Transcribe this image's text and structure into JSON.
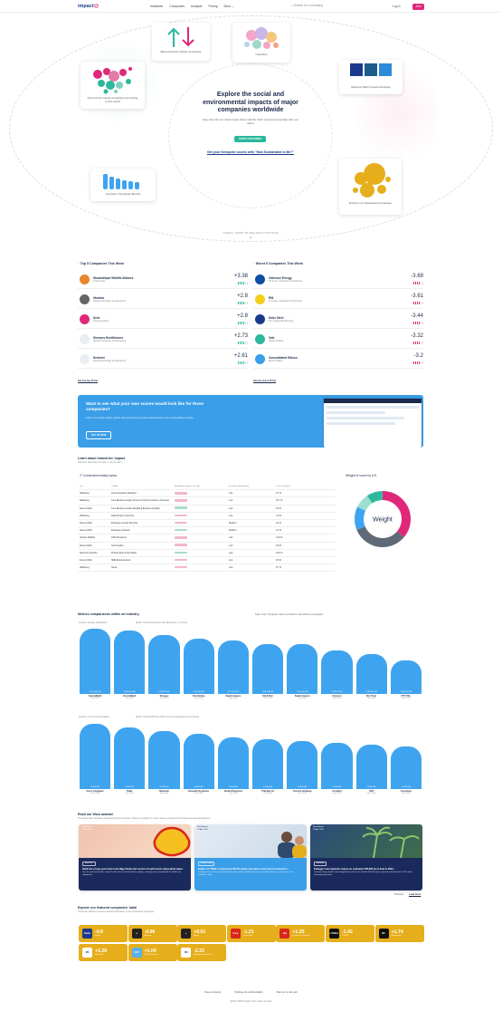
{
  "nav": {
    "logo": "impact",
    "logo_mark": "@",
    "links": [
      "Industries",
      "Companies",
      "Analysts",
      "Pricing",
      "More"
    ],
    "search_placeholder": "Search for a company",
    "login": "Log in",
    "signup": "Join"
  },
  "hero": {
    "title": "Explore the social and environmental impacts of major companies worldwide",
    "subtitle": "Deep dive into our robust impact data to identify which companies lead align with your values",
    "cta": "START EXPLORING",
    "link": "Get your Seespoke scores with \"How Sustainable Is Me?\"",
    "scroll": "SCROLL DOWN TO SEE ANALYTICS DATA",
    "cards": {
      "best_worst": "Best and worst impact companies",
      "industries": "Industries",
      "find_impact": "Find out the impact companies are having on the world",
      "analyses": "Read our Best Impacts Analyses",
      "compare": "Compare Companies Metrics",
      "showcase": "Explore our showcased companies"
    }
  },
  "top": {
    "heading": "Top 5 Companies This Week",
    "see_all": "See the top 20 list",
    "items": [
      {
        "name": "Mozambique Wildlife Alliance",
        "sub": "Conservation",
        "score": "+3.38",
        "color": "#e8862a"
      },
      {
        "name": "Illumina",
        "sub": "Medical Technology and Equipment",
        "score": "+2.8",
        "color": "#666666"
      },
      {
        "name": "Seek",
        "sub": "Internet & Media",
        "score": "+2.8",
        "color": "#e0287b"
      },
      {
        "name": "Siemens Healthineers",
        "sub": "Medical Technology and Equipment",
        "score": "+2.73",
        "color": "#e8edf3"
      },
      {
        "name": "Dentsinl",
        "sub": "Medical Technology and Equipment",
        "score": "+2.61",
        "color": "#e8edf3"
      }
    ]
  },
  "worst": {
    "heading": "Worst 5 Companies This Week",
    "see_all": "See the worst 20 list",
    "items": [
      {
        "name": "Ostrovoe Energy",
        "sub": "Oil & Gas - Exploration & Production",
        "score": "-3.69",
        "color": "#0e4da4"
      },
      {
        "name": "ENI",
        "sub": "Oil & Gas - Exploration & Production",
        "score": "-3.61",
        "color": "#f4cf1a"
      },
      {
        "name": "Kobe Steel",
        "sub": "Iron & Steel Manufacturing",
        "score": "-3.44",
        "color": "#1b3a8c"
      },
      {
        "name": "Vale",
        "sub": "Mining & Metals",
        "score": "-3.32",
        "color": "#2cb89d"
      },
      {
        "name": "Consolidated Edison",
        "sub": "Electric Utilities",
        "score": "-3.2",
        "color": "#3a9ee8"
      }
    ]
  },
  "banner": {
    "title": "Want to see what your own scores would look like for these companies?",
    "text": "Click on the button below, quickly rate each query, and get ranked based on your sustainability priorities",
    "cta": "SET UP NOW"
  },
  "learn": {
    "heading": "Learn about Industries' impact",
    "sub": "Discover what they do well, or not so well...",
    "topics": "Connectvia industry topics",
    "columns": [
      "S.N",
      "THEME",
      "AVERAGE IMPACT SCORE",
      "SCORE DISPERSION",
      "TOPIC WEIGHT"
    ],
    "rows": [
      [
        "Wellbeing",
        "Anti-Competitive Behavior",
        "",
        "Low",
        "0.7 %"
      ],
      [
        "Wellbeing",
        "Core Business Impact (Income Or Entire Goods or Services)",
        "",
        "Low",
        "32.7 %"
      ],
      [
        "Decent Work",
        "Core Business Impact (Enabling Business Growth)",
        "",
        "Low",
        "0.8 %"
      ],
      [
        "Wellbeing",
        "Data Privacy & Security",
        "",
        "Low",
        "1.8 %"
      ],
      [
        "Decent Work",
        "Employee Gender Diversity",
        "",
        "Medium",
        "0.2 %"
      ],
      [
        "Decent Work",
        "Employee Inclusion",
        "",
        "Medium",
        "2.1 %"
      ],
      [
        "Climate Stability",
        "GHG Emissions",
        "",
        "Low",
        "13.9 %"
      ],
      [
        "Decent Work",
        "Job Creation",
        "",
        "Low",
        "0.9 %"
      ],
      [
        "Resource Security",
        "Product End-of-Life Waste",
        "",
        "Low",
        "13.8 %"
      ],
      [
        "Decent Work",
        "SME Empowerment",
        "",
        "Low",
        "9.8 %"
      ],
      [
        "Wellbeing",
        "Taxes",
        "",
        "Low",
        "8.7 %"
      ]
    ],
    "donut_title": "Weight of score by ILG",
    "donut_center": "Weight"
  },
  "metrics": {
    "heading": "Metrics comparisons within an industry",
    "note": "Note: Only \"Complete\" data is included in the Metrics Comparator",
    "chart1_labels": [
      "Industry: Energy & Materials",
      "Metric: Total Greenhouse Gas Emissions, in Tonnes"
    ],
    "chart2_labels": [
      "Industry: IT & Communications",
      "Metric: Total Staff Hours With Access to Education and Training"
    ]
  },
  "chart_data": [
    {
      "type": "bar",
      "title": "",
      "categories": [
        "ExxonMobil",
        "ExxonMobil",
        "Sinopec",
        "PetroChina",
        "Saudi Aramco",
        "Shell PLC",
        "Saudi Aramco",
        "Chevron",
        "Rio Tinto",
        "PTT PCL"
      ],
      "years": [
        "Year 2022",
        "Year 2021",
        "Year 2022",
        "Year 2022",
        "Year 2022",
        "Year 2022",
        "Year 2021",
        "Year 2022",
        "Year 2022",
        "Year 2022"
      ],
      "values": [
        2100000000,
        2040000000,
        1910000000,
        1790000000,
        1710000000,
        1600000000,
        1590000000,
        1390000000,
        1280000000,
        1090000000
      ],
      "value_labels": [
        "2,100,000,000",
        "2,040,000,000",
        "1,910,000,000",
        "1,790,000,000",
        "1,710,000,000",
        "1,600,000,000",
        "1,590,000,000",
        "1,390,000,000",
        "1,280,000,000",
        "1,090,000,000"
      ]
    },
    {
      "type": "bar",
      "title": "",
      "categories": [
        "Cisco Computer",
        "Tata1",
        "Nintendo",
        "Dassault Systemes",
        "Global Payments",
        "T-Mobile Co",
        "Tencent Holdings",
        "Accident",
        "SAP",
        "Accenture"
      ],
      "years": [
        "Year 2022",
        "Year 2022",
        "Year 2022",
        "Year 2022",
        "Year 2022",
        "Year 2022",
        "Year 2022",
        "Year 2022",
        "Year 2022",
        "Year 2022"
      ],
      "values": [
        19000000,
        18000000,
        17000000,
        16000000,
        15000000,
        14500000,
        14000000,
        13500000,
        13000000,
        12500000
      ],
      "value_labels": [
        "19,000,000",
        "18,000,000",
        "17,000,000",
        "16,000,000",
        "15,000,000",
        "14,500,000",
        "14,000,000",
        "13,500,000",
        "13,000,000",
        "12,500,000"
      ]
    }
  ],
  "awards": {
    "heading": "Read our Wow awards!",
    "sub": "The Award has celebrates outstanding impact analyses, shining a spotlight on entries whose exceptional work deserves acknowledgement.",
    "items": [
      {
        "author": "Wow Award",
        "date": "15 Apr 2023",
        "tag": "Shell PLC",
        "title": "Shell has a long year track in the Niger Delta and current oil spill events that pollute water...",
        "desc": "Over the past four decades, reports 2 million liters of oil of land-base spillage, rendering areas uninhabitable for wildlife and neighboring..."
      },
      {
        "author": "Wow Award",
        "date": "10 Apr 2023",
        "tag": "Tenasr Group",
        "title": "Enabi, in FY2022, comprised of 68.7% ethnic minorities in the board of directors...",
        "desc": "Including a focus of their data and level of representation, highlight importance of visibility, diversity, and inclusion in the workplace's high..."
      },
      {
        "author": "Wow Award",
        "date": "09 Apr 2023",
        "tag": "Mahindra",
        "title": "Kellogg's raw materials require an estimated 785,000 ha of land in 2022...",
        "desc": "Land use change linked to forest degradation and the loss of about 500,000 species primarily in deforestation 4.75% under commodity production..."
      }
    ],
    "prev": "Previous",
    "next": "Load more"
  },
  "featured": {
    "heading": "Explore our featured companies' data!",
    "sub": "Unlock the dataset to access detailed information on the showcased companies",
    "items": [
      {
        "logo": "Nestle",
        "score": "-0.8",
        "name": "Nestle",
        "color": "#1b3a8c"
      },
      {
        "logo": "a",
        "score": "-0.96",
        "name": "Amazon",
        "color": "#222222"
      },
      {
        "logo": "●",
        "score": "+0.01",
        "name": "Apple",
        "color": "#222222"
      },
      {
        "logo": "Coca",
        "score": "-1.21",
        "name": "Coca-Cola",
        "color": "#d9261c"
      },
      {
        "logo": "J&J",
        "score": "+1.25",
        "name": "Johnson & Johnson",
        "color": "#d9261c"
      },
      {
        "logo": "L'OREAL",
        "score": "-1.42",
        "name": "L'Oreal",
        "color": "#111111"
      },
      {
        "logo": "MC",
        "score": "+1.74",
        "name": "Mastercard",
        "color": "#111111"
      },
      {
        "logo": "MS",
        "score": "+2.28",
        "name": "Microsoft",
        "color": "#ffffff"
      },
      {
        "logo": "ADP",
        "score": "+1.04",
        "name": "ADP Resources",
        "color": "#5ab0e8"
      },
      {
        "logo": "DM",
        "score": "-2.22",
        "name": "Expedition Mundo Co.",
        "color": "#ffffff"
      }
    ]
  },
  "footer": {
    "links": [
      "Nous contacter",
      "Politique de confidentialité",
      "Aller sur le site web"
    ],
    "copyright": "@2017-2025 impact! Tous droits réservés"
  },
  "colors": {
    "accent": "#e0287b",
    "blue": "#3fa4ef",
    "green": "#2cb89d",
    "navy": "#1b2a4a",
    "gold": "#e6ae1a"
  }
}
